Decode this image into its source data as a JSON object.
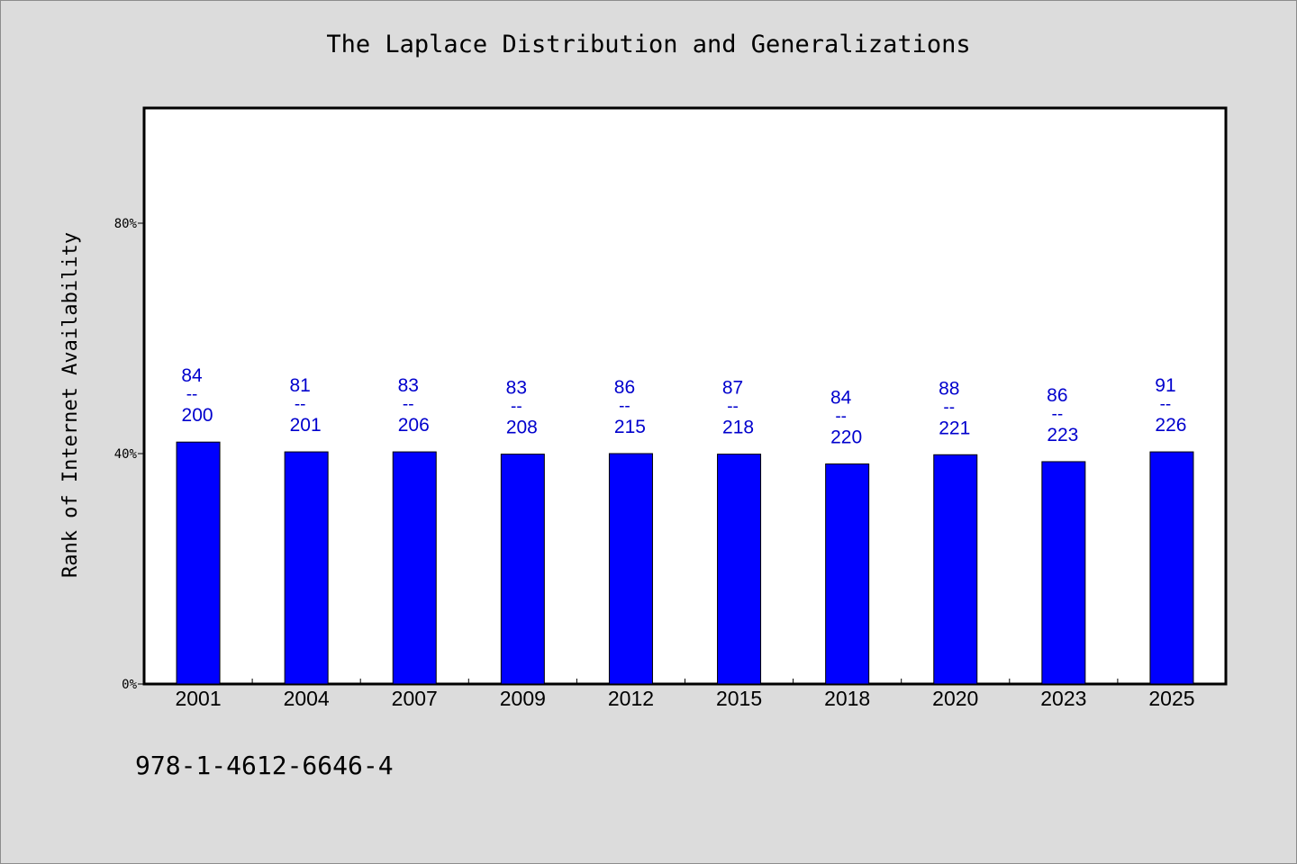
{
  "footer": {
    "code": "978-1-4612-6646-4"
  },
  "chart_data": {
    "type": "bar",
    "title": "The Laplace Distribution and Generalizations",
    "xlabel": "",
    "ylabel": "Rank of Internet Availability",
    "categories": [
      "2001",
      "2004",
      "2007",
      "2009",
      "2012",
      "2015",
      "2018",
      "2020",
      "2023",
      "2025"
    ],
    "values": [
      0.42,
      0.403,
      0.403,
      0.399,
      0.4,
      0.399,
      0.382,
      0.398,
      0.386,
      0.403
    ],
    "data_labels": [
      {
        "numerator": "84",
        "separator": "--",
        "denominator": "200"
      },
      {
        "numerator": "81",
        "separator": "--",
        "denominator": "201"
      },
      {
        "numerator": "83",
        "separator": "--",
        "denominator": "206"
      },
      {
        "numerator": "83",
        "separator": "--",
        "denominator": "208"
      },
      {
        "numerator": "86",
        "separator": "--",
        "denominator": "215"
      },
      {
        "numerator": "87",
        "separator": "--",
        "denominator": "218"
      },
      {
        "numerator": "84",
        "separator": "--",
        "denominator": "220"
      },
      {
        "numerator": "88",
        "separator": "--",
        "denominator": "221"
      },
      {
        "numerator": "86",
        "separator": "--",
        "denominator": "223"
      },
      {
        "numerator": "91",
        "separator": "--",
        "denominator": "226"
      }
    ],
    "ylim": [
      0,
      1
    ],
    "yticks": [
      0,
      0.4,
      0.8
    ],
    "ytick_labels": [
      "0%",
      "40%",
      "80%"
    ],
    "grid": false,
    "colors": {
      "bar": "#0000ff",
      "label": "#0000cd",
      "axis": "#000000",
      "plot_bg": "#ffffff"
    }
  }
}
